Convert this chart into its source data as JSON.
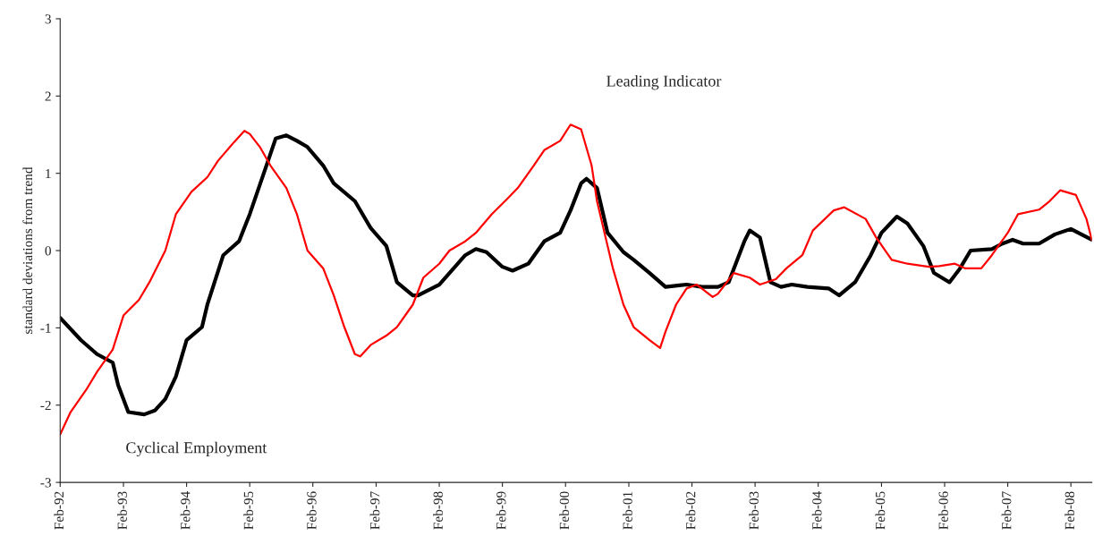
{
  "chart_data": {
    "type": "line",
    "ylabel": "standard deviations from trend",
    "xlim": [
      "1992-02",
      "2008-06"
    ],
    "ylim": [
      -3,
      3
    ],
    "yticks": [
      -3,
      -2,
      -1,
      0,
      1,
      2,
      3
    ],
    "xticks": [
      {
        "value": "1992-02",
        "label": "Feb-92"
      },
      {
        "value": "1993-02",
        "label": "Feb-93"
      },
      {
        "value": "1994-02",
        "label": "Feb-94"
      },
      {
        "value": "1995-02",
        "label": "Feb-95"
      },
      {
        "value": "1996-02",
        "label": "Feb-96"
      },
      {
        "value": "1997-02",
        "label": "Feb-97"
      },
      {
        "value": "1998-02",
        "label": "Feb-98"
      },
      {
        "value": "1999-02",
        "label": "Feb-99"
      },
      {
        "value": "2000-02",
        "label": "Feb-00"
      },
      {
        "value": "2001-02",
        "label": "Feb-01"
      },
      {
        "value": "2002-02",
        "label": "Feb-02"
      },
      {
        "value": "2003-02",
        "label": "Feb-03"
      },
      {
        "value": "2004-02",
        "label": "Feb-04"
      },
      {
        "value": "2005-02",
        "label": "Feb-05"
      },
      {
        "value": "2006-02",
        "label": "Feb-06"
      },
      {
        "value": "2007-02",
        "label": "Feb-07"
      },
      {
        "value": "2008-02",
        "label": "Feb-08"
      }
    ],
    "grid": false,
    "legend": false,
    "series": [
      {
        "name": "Cyclical Employment",
        "color": "#000000",
        "x": [
          "1992-02",
          "1992-06",
          "1992-09",
          "1992-12",
          "1993-01",
          "1993-03",
          "1993-06",
          "1993-08",
          "1993-10",
          "1993-12",
          "1994-02",
          "1994-05",
          "1994-06",
          "1994-09",
          "1994-12",
          "1995-02",
          "1995-05",
          "1995-07",
          "1995-09",
          "1995-11",
          "1996-01",
          "1996-04",
          "1996-06",
          "1996-10",
          "1997-01",
          "1997-04",
          "1997-06",
          "1997-09",
          "1997-10",
          "1998-02",
          "1998-04",
          "1998-07",
          "1998-09",
          "1998-11",
          "1999-02",
          "1999-04",
          "1999-07",
          "1999-10",
          "2000-01",
          "2000-03",
          "2000-05",
          "2000-06",
          "2000-08",
          "2000-10",
          "2001-01",
          "2001-03",
          "2001-06",
          "2001-09",
          "2002-01",
          "2002-04",
          "2002-07",
          "2002-09",
          "2002-12",
          "2003-01",
          "2003-03",
          "2003-05",
          "2003-07",
          "2003-09",
          "2003-12",
          "2004-04",
          "2004-06",
          "2004-09",
          "2004-12",
          "2005-02",
          "2005-05",
          "2005-07",
          "2005-10",
          "2005-12",
          "2006-03",
          "2006-05",
          "2006-07",
          "2006-11",
          "2007-01",
          "2007-03",
          "2007-05",
          "2007-08",
          "2007-11",
          "2008-02",
          "2008-04",
          "2008-06"
        ],
        "values": [
          -0.87,
          -1.16,
          -1.34,
          -1.45,
          -1.74,
          -2.09,
          -2.12,
          -2.07,
          -1.92,
          -1.63,
          -1.16,
          -0.99,
          -0.7,
          -0.06,
          0.12,
          0.47,
          1.05,
          1.45,
          1.49,
          1.42,
          1.34,
          1.1,
          0.87,
          0.64,
          0.29,
          0.06,
          -0.41,
          -0.58,
          -0.58,
          -0.44,
          -0.29,
          -0.06,
          0.02,
          -0.02,
          -0.21,
          -0.26,
          -0.17,
          0.12,
          0.23,
          0.52,
          0.87,
          0.93,
          0.81,
          0.23,
          -0.02,
          -0.12,
          -0.29,
          -0.47,
          -0.44,
          -0.47,
          -0.47,
          -0.41,
          0.12,
          0.26,
          0.17,
          -0.41,
          -0.47,
          -0.44,
          -0.47,
          -0.49,
          -0.58,
          -0.41,
          -0.06,
          0.23,
          0.44,
          0.35,
          0.06,
          -0.29,
          -0.41,
          -0.23,
          0.0,
          0.02,
          0.09,
          0.14,
          0.09,
          0.09,
          0.21,
          0.28,
          0.21,
          0.14
        ]
      },
      {
        "name": "Leading Indicator",
        "color": "#ff0000",
        "x": [
          "1992-02",
          "1992-04",
          "1992-07",
          "1992-09",
          "1992-12",
          "1993-02",
          "1993-05",
          "1993-07",
          "1993-10",
          "1993-12",
          "1994-03",
          "1994-06",
          "1994-08",
          "1994-11",
          "1995-01",
          "1995-02",
          "1995-04",
          "1995-06",
          "1995-09",
          "1995-11",
          "1996-01",
          "1996-04",
          "1996-06",
          "1996-08",
          "1996-10",
          "1996-11",
          "1997-01",
          "1997-04",
          "1997-06",
          "1997-09",
          "1997-11",
          "1998-02",
          "1998-04",
          "1998-07",
          "1998-09",
          "1998-12",
          "1999-03",
          "1999-05",
          "1999-08",
          "1999-10",
          "2000-01",
          "2000-03",
          "2000-05",
          "2000-07",
          "2000-08",
          "2000-11",
          "2001-01",
          "2001-03",
          "2001-06",
          "2001-08",
          "2001-09",
          "2001-11",
          "2002-01",
          "2002-03",
          "2002-06",
          "2002-07",
          "2002-10",
          "2003-01",
          "2003-03",
          "2003-06",
          "2003-08",
          "2003-11",
          "2004-01",
          "2004-05",
          "2004-07",
          "2004-11",
          "2005-01",
          "2005-04",
          "2005-07",
          "2005-11",
          "2006-01",
          "2006-04",
          "2006-06",
          "2006-09",
          "2006-11",
          "2007-02",
          "2007-04",
          "2007-08",
          "2007-10",
          "2007-12",
          "2008-03",
          "2008-05",
          "2008-06"
        ],
        "values": [
          -2.38,
          -2.09,
          -1.8,
          -1.57,
          -1.28,
          -0.84,
          -0.64,
          -0.41,
          0.0,
          0.47,
          0.76,
          0.95,
          1.16,
          1.4,
          1.55,
          1.51,
          1.34,
          1.1,
          0.81,
          0.47,
          0.0,
          -0.23,
          -0.58,
          -0.99,
          -1.34,
          -1.37,
          -1.22,
          -1.1,
          -0.99,
          -0.7,
          -0.35,
          -0.17,
          0.0,
          0.12,
          0.23,
          0.47,
          0.67,
          0.81,
          1.1,
          1.3,
          1.42,
          1.63,
          1.57,
          1.1,
          0.64,
          -0.23,
          -0.7,
          -0.99,
          -1.16,
          -1.26,
          -1.05,
          -0.7,
          -0.49,
          -0.44,
          -0.6,
          -0.56,
          -0.29,
          -0.35,
          -0.44,
          -0.37,
          -0.23,
          -0.06,
          0.26,
          0.52,
          0.56,
          0.41,
          0.17,
          -0.12,
          -0.17,
          -0.21,
          -0.2,
          -0.17,
          -0.23,
          -0.23,
          -0.06,
          0.23,
          0.47,
          0.53,
          0.64,
          0.78,
          0.72,
          0.41,
          0.14
        ]
      }
    ]
  }
}
